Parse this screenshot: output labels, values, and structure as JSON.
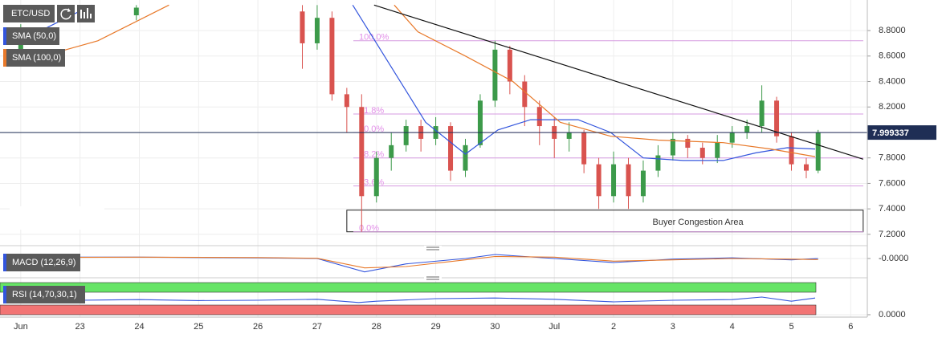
{
  "chart_data": [
    {
      "type": "candlestick",
      "name": "ETC/USD",
      "xlim": [
        21.65,
        36.28
      ],
      "ylim": [
        7.13,
        9.04
      ],
      "xticks": [
        {
          "value": 22,
          "label": "Jun"
        },
        23,
        24,
        25,
        26,
        27,
        28,
        29,
        30,
        {
          "value": 31,
          "label": "Jul"
        },
        {
          "value": 32,
          "label": "2"
        },
        {
          "value": 33,
          "label": "3"
        },
        {
          "value": 34,
          "label": "4"
        },
        {
          "value": 35,
          "label": "5"
        },
        {
          "value": 36,
          "label": "6"
        }
      ],
      "yticks": [
        {
          "value": 7.2,
          "label": "7.2000"
        },
        {
          "value": 7.4,
          "label": "7.4000"
        },
        {
          "value": 7.6,
          "label": "7.6000"
        },
        {
          "value": 7.8,
          "label": "7.8000"
        },
        {
          "value": 8.0,
          "label": "8.0000"
        },
        {
          "value": 8.2,
          "label": "8.2000"
        },
        {
          "value": 8.4,
          "label": "8.4000"
        },
        {
          "value": 8.6,
          "label": "8.6000"
        },
        {
          "value": 8.8,
          "label": "8.8000"
        }
      ],
      "up_color": "#3c9a4a",
      "down_color": "#d9534f",
      "x": [
        22.0,
        23.95,
        26.75,
        27.0,
        27.25,
        27.5,
        27.75,
        28.0,
        28.25,
        28.5,
        28.75,
        29.0,
        29.25,
        29.5,
        29.75,
        30.0,
        30.25,
        30.5,
        30.75,
        31.0,
        31.25,
        31.5,
        31.75,
        32.0,
        32.25,
        32.5,
        32.75,
        33.0,
        33.25,
        33.5,
        33.75,
        34.0,
        34.25,
        34.5,
        34.75,
        35.0,
        35.25,
        35.45
      ],
      "open": [
        8.6,
        8.92,
        8.95,
        8.7,
        8.9,
        8.3,
        8.2,
        7.5,
        7.8,
        7.9,
        8.05,
        7.95,
        8.05,
        7.7,
        7.9,
        8.25,
        8.65,
        8.4,
        8.2,
        8.05,
        7.95,
        8.0,
        7.75,
        7.5,
        7.75,
        7.5,
        7.7,
        7.82,
        7.95,
        7.88,
        7.8,
        7.92,
        8.0,
        8.05,
        8.25,
        7.97,
        7.75,
        7.7
      ],
      "high": [
        8.85,
        9.0,
        9.0,
        9.0,
        8.95,
        8.35,
        8.3,
        7.85,
        8.0,
        8.1,
        8.1,
        8.12,
        8.08,
        7.95,
        8.3,
        8.72,
        8.68,
        8.45,
        8.25,
        8.12,
        8.08,
        8.02,
        7.8,
        7.85,
        7.8,
        7.78,
        7.9,
        8.0,
        7.98,
        7.92,
        7.98,
        8.05,
        8.1,
        8.37,
        8.28,
        8.0,
        7.8,
        8.02
      ],
      "low": [
        8.55,
        8.88,
        8.5,
        8.65,
        8.25,
        8.0,
        7.22,
        7.45,
        7.7,
        7.85,
        7.85,
        7.9,
        7.62,
        7.65,
        7.88,
        8.2,
        8.3,
        8.05,
        7.9,
        7.8,
        7.85,
        7.68,
        7.4,
        7.45,
        7.4,
        7.45,
        7.65,
        7.78,
        7.8,
        7.75,
        7.76,
        7.88,
        7.95,
        8.0,
        7.92,
        7.7,
        7.64,
        7.68
      ],
      "close": [
        8.75,
        8.98,
        8.7,
        8.9,
        8.3,
        8.2,
        7.5,
        7.8,
        7.9,
        8.05,
        7.95,
        8.05,
        7.7,
        7.9,
        8.25,
        8.65,
        8.4,
        8.2,
        8.05,
        7.95,
        8.0,
        7.75,
        7.5,
        7.75,
        7.5,
        7.7,
        7.82,
        7.95,
        7.88,
        7.8,
        7.92,
        8.0,
        8.05,
        8.25,
        7.97,
        7.75,
        7.7,
        8.0
      ],
      "overlays": [
        {
          "name": "SMA (50,0)",
          "color": "#3355dd",
          "x": [
            22.0,
            23.2,
            25.5,
            27.6,
            28.83,
            29.5,
            30.05,
            30.6,
            31.4,
            31.95,
            32.5,
            33.17,
            33.85,
            34.4,
            34.93,
            35.4
          ],
          "values": [
            8.72,
            9.0,
            null,
            9.0,
            8.08,
            7.83,
            8.02,
            8.1,
            8.1,
            8.0,
            7.8,
            7.78,
            7.78,
            7.84,
            7.88,
            7.87
          ]
        },
        {
          "name": "SMA (100,0)",
          "color": "#e8792a",
          "x": [
            22.0,
            23.3,
            24.5,
            26.0,
            28.3,
            28.7,
            29.5,
            30.3,
            31.1,
            31.95,
            32.75,
            33.85,
            34.65,
            35.4
          ],
          "values": [
            8.55,
            8.72,
            9.0,
            null,
            9.0,
            8.79,
            8.6,
            8.4,
            8.08,
            7.97,
            7.94,
            7.92,
            7.87,
            7.81
          ]
        }
      ],
      "last_price": 7.999337,
      "fib_levels": [
        {
          "value": 8.72,
          "label": "100.0%"
        },
        {
          "value": 8.145,
          "label": "61.8%"
        },
        {
          "value": 8.0,
          "label": "50.0%"
        },
        {
          "value": 7.8,
          "label": "38.2%"
        },
        {
          "value": 7.58,
          "label": "23.6%"
        },
        {
          "value": 7.22,
          "label": "0.0%"
        }
      ],
      "trendline": {
        "x": [
          27.96,
          36.21
        ],
        "values": [
          9.0,
          7.79
        ]
      },
      "zone": {
        "label": "Buyer Congestion Area",
        "x": [
          27.5,
          36.21
        ],
        "values": [
          7.22,
          7.39
        ]
      }
    },
    {
      "type": "line",
      "name": "MACD (12,26,9)",
      "ylim": [
        -0.12,
        0.06
      ],
      "yticks": [
        {
          "value": 0,
          "label": "-0.0000"
        }
      ],
      "x": [
        22,
        24,
        26,
        27,
        27.8,
        28.5,
        29.5,
        30,
        31,
        32,
        33,
        34,
        35,
        35.45
      ],
      "series": [
        {
          "color": "#3355dd",
          "values": [
            0.01,
            0.01,
            0.005,
            0.0,
            -0.1,
            -0.04,
            0.0,
            0.03,
            0.0,
            -0.03,
            -0.005,
            0.005,
            -0.01,
            0.0
          ]
        },
        {
          "color": "#e8792a",
          "values": [
            0.008,
            0.01,
            0.007,
            0.002,
            -0.07,
            -0.06,
            -0.01,
            0.015,
            0.01,
            -0.02,
            -0.01,
            0.0,
            -0.005,
            -0.008
          ]
        }
      ]
    },
    {
      "type": "line",
      "name": "RSI (14,70,30,1)",
      "ylim": [
        0,
        100
      ],
      "yticks": [
        {
          "value": 0,
          "label": "0.0000"
        }
      ],
      "bands": [
        {
          "range": [
            70,
            100
          ],
          "color": "#66e466"
        },
        {
          "range": [
            0,
            30
          ],
          "color": "#f27474"
        }
      ],
      "x": [
        22,
        23,
        24,
        25,
        26,
        27,
        27.7,
        28,
        29,
        30,
        31,
        32,
        33,
        34,
        34.5,
        35,
        35.4
      ],
      "series": [
        {
          "color": "#3355dd",
          "values": [
            48,
            45,
            47,
            44,
            45,
            48,
            38,
            42,
            50,
            52,
            48,
            40,
            45,
            47,
            55,
            42,
            52
          ]
        }
      ]
    }
  ]
}
